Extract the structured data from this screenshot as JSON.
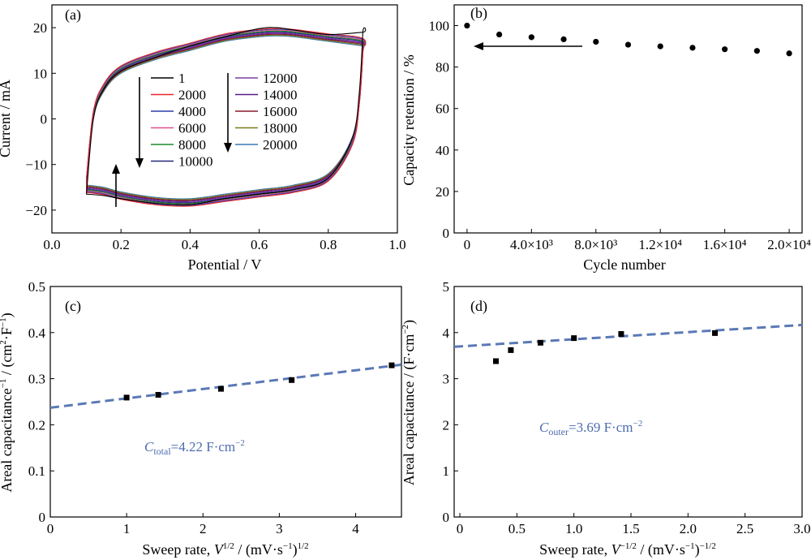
{
  "chart_data": [
    {
      "panel_label": "(a)",
      "type": "line",
      "xlabel": "Potential / V",
      "ylabel": "Current / mA",
      "xlim": [
        0.0,
        1.0
      ],
      "ylim": [
        -25,
        25
      ],
      "xticks": [
        "0.0",
        "0.2",
        "0.4",
        "0.6",
        "0.8",
        "1.0"
      ],
      "yticks": [
        "−20",
        "−10",
        "0",
        "10",
        "20"
      ],
      "legend_placement": "center",
      "series": [
        {
          "name": "1",
          "color": "#000000"
        },
        {
          "name": "2000",
          "color": "#e8262a"
        },
        {
          "name": "4000",
          "color": "#2a3fa8"
        },
        {
          "name": "6000",
          "color": "#e0508e"
        },
        {
          "name": "8000",
          "color": "#1f8a2a"
        },
        {
          "name": "10000",
          "color": "#26287a"
        },
        {
          "name": "12000",
          "color": "#7b3fa0"
        },
        {
          "name": "14000",
          "color": "#5a1a8a"
        },
        {
          "name": "16000",
          "color": "#8a1a2a"
        },
        {
          "name": "18000",
          "color": "#7a7a1a"
        },
        {
          "name": "20000",
          "color": "#3a7ab0"
        }
      ],
      "cv_loop": {
        "upper": {
          "x": [
            0.1,
            0.12,
            0.15,
            0.2,
            0.3,
            0.4,
            0.5,
            0.6,
            0.65,
            0.7,
            0.8,
            0.9
          ],
          "y": [
            -14.5,
            0,
            6,
            10,
            13,
            15,
            17,
            18,
            18.2,
            18,
            17,
            16
          ]
        },
        "lower": {
          "x": [
            0.9,
            0.89,
            0.87,
            0.8,
            0.7,
            0.6,
            0.5,
            0.4,
            0.3,
            0.2,
            0.15,
            0.1
          ],
          "y": [
            16,
            5,
            -4,
            -12,
            -14.5,
            -15.5,
            -16.5,
            -17.5,
            -17.2,
            -16,
            -15,
            -14.5
          ]
        },
        "first_cycle": {
          "upper": {
            "x": [
              0.1,
              0.12,
              0.15,
              0.2,
              0.3,
              0.4,
              0.5,
              0.6,
              0.65,
              0.7,
              0.8,
              0.9
            ],
            "y": [
              -16.5,
              0,
              6.5,
              10.5,
              13.5,
              16,
              18,
              19.8,
              20,
              19.5,
              18.5,
              19
            ]
          },
          "lower": {
            "x": [
              0.9,
              0.89,
              0.87,
              0.8,
              0.7,
              0.6,
              0.5,
              0.4,
              0.3,
              0.2,
              0.15,
              0.1
            ],
            "y": [
              19,
              6,
              -4,
              -13,
              -15.5,
              -16.5,
              -17.5,
              -18.8,
              -18.5,
              -17.5,
              -16.8,
              -16.5
            ]
          }
        }
      }
    },
    {
      "panel_label": "(b)",
      "type": "scatter",
      "xlabel": "Cycle number",
      "ylabel": "Capacity retention / %",
      "xlim": [
        -800,
        20800
      ],
      "ylim": [
        0,
        110
      ],
      "xticks": [
        {
          "value": 0,
          "label": "0"
        },
        {
          "value": 4000,
          "label": "4.0×10³"
        },
        {
          "value": 8000,
          "label": "8.0×10³"
        },
        {
          "value": 12000,
          "label": "1.2×10⁴"
        },
        {
          "value": 16000,
          "label": "1.6×10⁴"
        },
        {
          "value": 20000,
          "label": "2.0×10⁴"
        }
      ],
      "yticks": [
        "0",
        "20",
        "40",
        "60",
        "80",
        "100"
      ],
      "x": [
        0,
        2000,
        4000,
        6000,
        8000,
        10000,
        12000,
        14000,
        16000,
        18000,
        20000
      ],
      "y": [
        100,
        95.7,
        94.4,
        93.4,
        92.2,
        90.8,
        90.0,
        89.3,
        88.6,
        87.8,
        86.6
      ]
    },
    {
      "panel_label": "(c)",
      "type": "scatter",
      "xlabel": "Sweep rate, V^1/2 / (mV·s^−1)^1/2",
      "xlabel_parts": {
        "a": "Sweep rate, ",
        "b": "V",
        "c": "1/2",
        "d": " / (mV·s",
        "e": "−1",
        "f": ")",
        "g": "1/2"
      },
      "ylabel": "Areal capacitance^−1 / (cm²·F^−1)",
      "ylabel_parts": {
        "a": "Areal capacitance",
        "b": "−1",
        "c": " / (cm",
        "d": "2",
        "e": "·F",
        "f": "−1",
        "g": ")"
      },
      "xlim": [
        0,
        4.6
      ],
      "ylim": [
        0,
        0.5
      ],
      "xticks": [
        "0",
        "1",
        "2",
        "3",
        "4"
      ],
      "yticks": [
        "0",
        "0.1",
        "0.2",
        "0.3",
        "0.4",
        "0.5"
      ],
      "x": [
        1.0,
        1.414,
        2.236,
        3.162,
        4.472
      ],
      "y": [
        0.259,
        0.265,
        0.278,
        0.297,
        0.329
      ],
      "fit": {
        "intercept": 0.237,
        "slope": 0.0203,
        "color": "#5b79b6"
      },
      "annotation": {
        "symbol": "C",
        "sub": "total",
        "text": "=4.22 F·cm",
        "sup": "−2"
      }
    },
    {
      "panel_label": "(d)",
      "type": "scatter",
      "xlabel": "Sweep rate, V^−1/2 / (mV·s^−1)^−1/2",
      "xlabel_parts": {
        "a": "Sweep rate, ",
        "b": "V",
        "c": "−1/2",
        "d": " / (mV·s",
        "e": "−1",
        "f": ")",
        "g": "−1/2"
      },
      "ylabel": "Areal capacitance / (F·cm^−2)",
      "ylabel_parts": {
        "a": "Areal capacitance / (F·cm",
        "b": "−2",
        "c": ")"
      },
      "xlim": [
        -0.05,
        3.0
      ],
      "ylim": [
        0,
        5
      ],
      "xticks": [
        "0",
        "0.5",
        "1.0",
        "1.5",
        "2.0",
        "2.5",
        "3.0"
      ],
      "yticks": [
        "0",
        "1",
        "2",
        "3",
        "4",
        "5"
      ],
      "x": [
        0.316,
        0.447,
        0.707,
        1.0,
        1.414,
        2.236
      ],
      "y": [
        3.38,
        3.62,
        3.78,
        3.88,
        3.97,
        3.99
      ],
      "fit": {
        "intercept": 3.7,
        "slope": 0.155,
        "color": "#5b79b6"
      },
      "annotation": {
        "symbol": "C",
        "sub": "outer",
        "text": "=3.69 F·cm",
        "sup": "−2"
      }
    }
  ]
}
